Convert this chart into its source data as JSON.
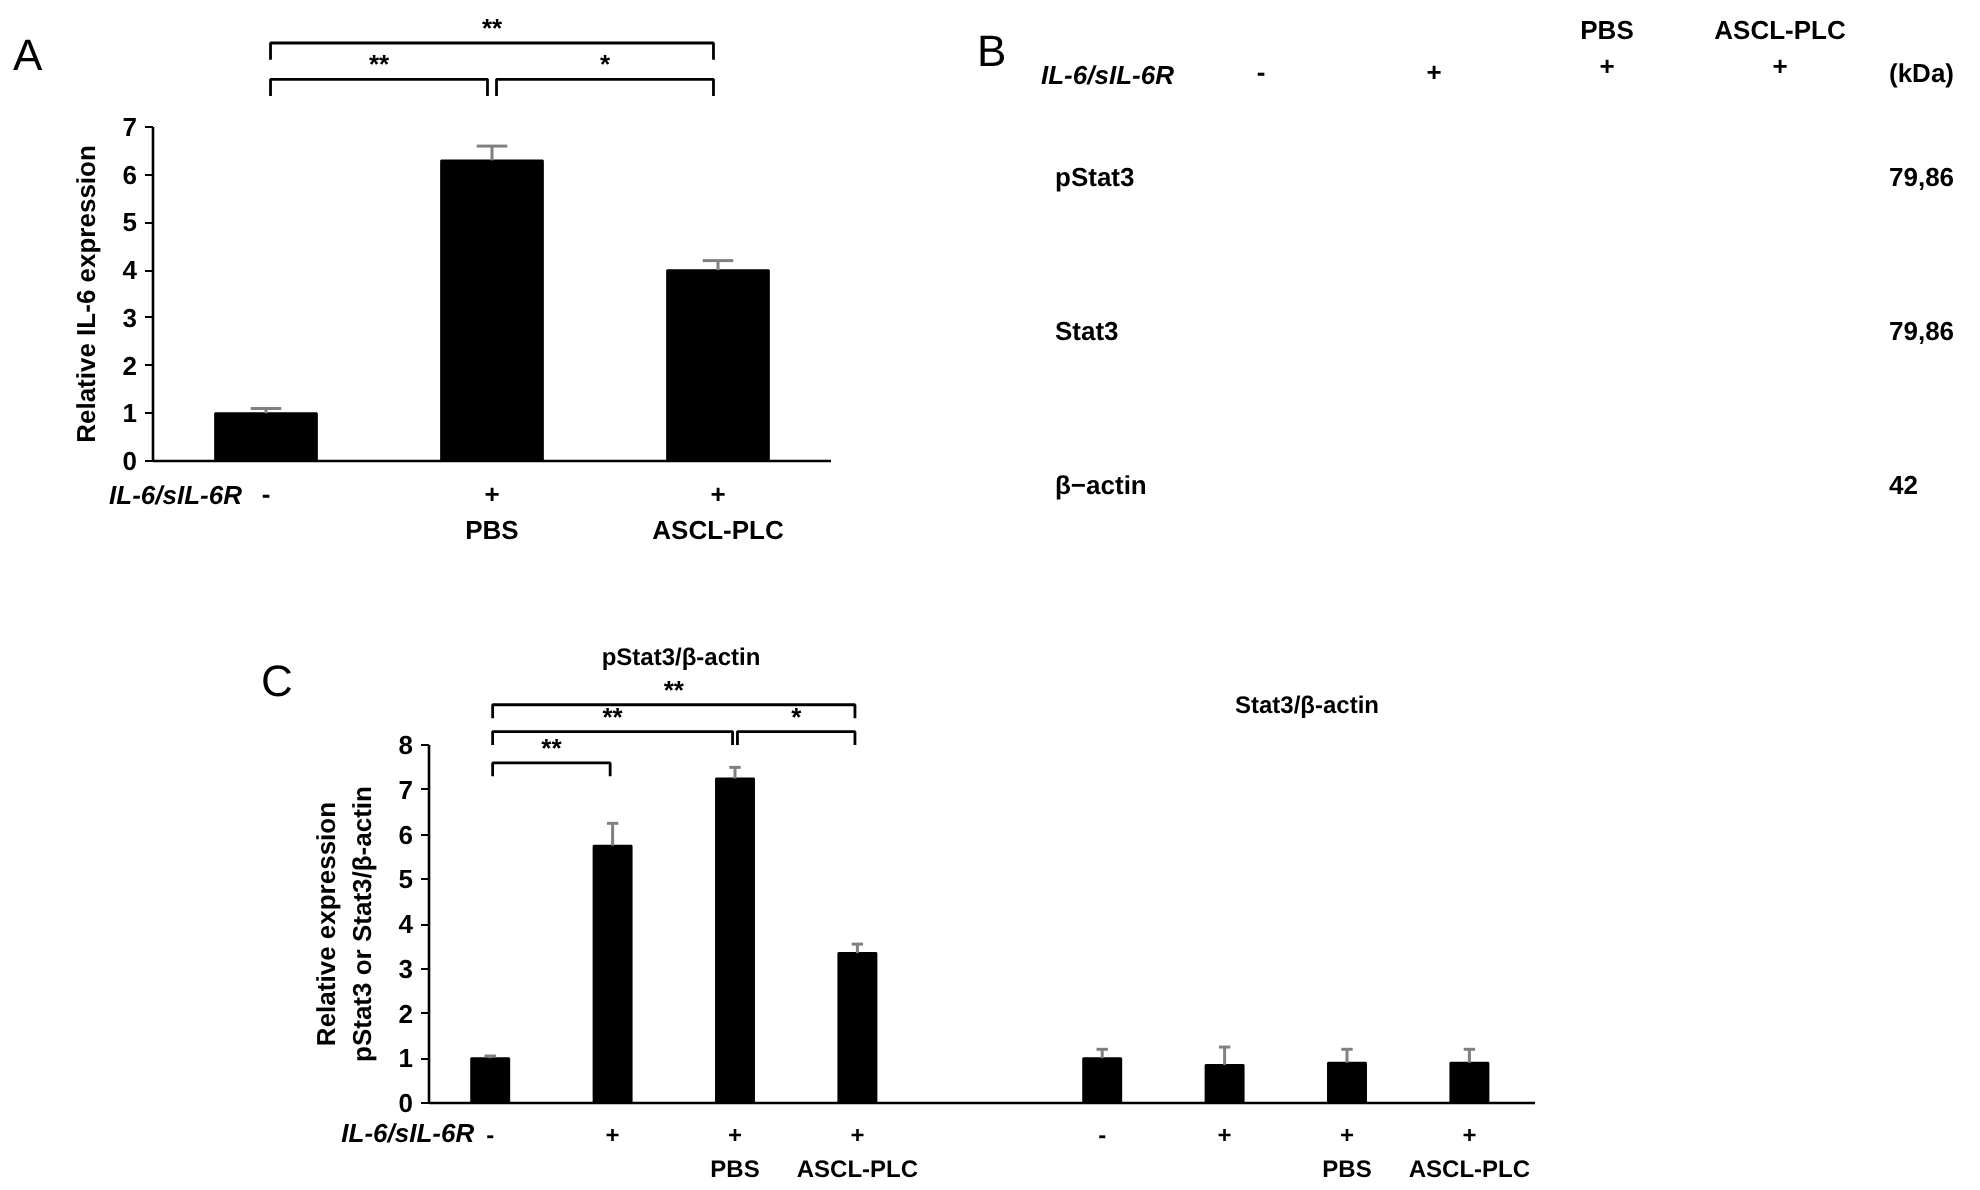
{
  "chart_data": [
    {
      "type": "bar",
      "title": "A",
      "ylabel": "Relative IL-6 expression",
      "xlabel": "IL-6/sIL-6R",
      "categories": [
        "-",
        "+\nPBS",
        "+\nASCL-PLC"
      ],
      "values": [
        1.0,
        6.3,
        4.0
      ],
      "errors": [
        0.1,
        0.3,
        0.2
      ],
      "color": "#000000",
      "ylim": [
        0,
        7
      ],
      "yticks": [
        0,
        1,
        2,
        3,
        4,
        5,
        6,
        7
      ],
      "annotations": [
        "**",
        "**",
        "*"
      ]
    },
    {
      "type": "other",
      "title": "B",
      "xlabel": "IL-6/sIL-6R",
      "y2label": "(kDa)",
      "categories": [
        "-",
        "+",
        "PBS\n+",
        "ASCL-PLC\n+"
      ],
      "y_categories": [
        "pStat3",
        "Stat3",
        "β−actin"
      ],
      "y2_categories": [
        "79,86",
        "79,86",
        "42"
      ]
    },
    {
      "type": "bar",
      "title": "C",
      "subtitle": "pStat3/β-actin",
      "ylabel": "Relative expression\npStat3 or Stat3/β-actin",
      "xlabel": "IL-6/sIL-6R",
      "categories": [
        "-",
        "+",
        "+\nPBS",
        "+\nASCL-PLC"
      ],
      "values": [
        1.0,
        5.75,
        7.25,
        3.35
      ],
      "errors": [
        0.05,
        0.5,
        0.25,
        0.2
      ],
      "color": "#000000",
      "ylim": [
        0,
        8
      ],
      "yticks": [
        0,
        1,
        2,
        3,
        4,
        5,
        6,
        7,
        8
      ],
      "annotations": [
        "**",
        "**",
        "*",
        "**"
      ]
    },
    {
      "type": "bar",
      "subtitle": "Stat3/β-actin",
      "categories": [
        "-",
        "+",
        "+\nPBS",
        "+\nASCL-PLC"
      ],
      "values": [
        1.0,
        0.85,
        0.9,
        0.9
      ],
      "errors": [
        0.2,
        0.4,
        0.3,
        0.3
      ],
      "color": "#000000",
      "ylim": [
        0,
        8
      ],
      "tick_labels": "x"
    }
  ]
}
